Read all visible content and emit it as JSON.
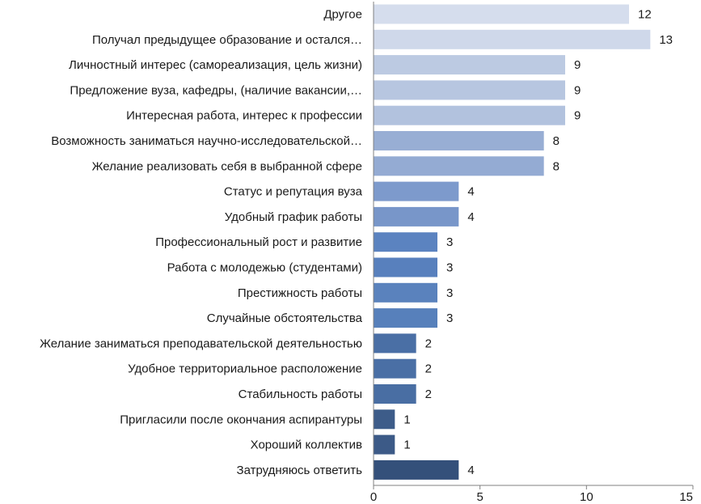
{
  "chart_data": {
    "type": "bar",
    "orientation": "horizontal",
    "categories": [
      "Другое",
      "Получал предыдущее образование и остался…",
      "Личностный интерес (самореализация, цель жизни)",
      "Предложение вуза, кафедры, (наличие вакансии,…",
      "Интересная работа, интерес к профессии",
      "Возможность заниматься научно-исследовательской…",
      "Желание реализовать себя в выбранной сфере",
      "Статус и репутация вуза",
      "Удобный график работы",
      "Профессиональный рост и развитие",
      "Работа с молодежью (студентами)",
      "Престижность работы",
      "Случайные обстоятельства",
      "Желание заниматься преподавательской деятельностью",
      "Удобное территориальное расположение",
      "Стабильность работы",
      "Пригласили после окончания аспирантуры",
      "Хороший коллектив",
      "Затрудняюсь ответить"
    ],
    "values": [
      12,
      13,
      9,
      9,
      9,
      8,
      8,
      4,
      4,
      3,
      3,
      3,
      3,
      2,
      2,
      2,
      1,
      1,
      4
    ],
    "data_labels": [
      "12",
      "13",
      "9",
      "9",
      "9",
      "8",
      "8",
      "4",
      "4",
      "3",
      "3",
      "3",
      "3",
      "2",
      "2",
      "2",
      "1",
      "1",
      "4"
    ],
    "xlim": [
      0,
      15
    ],
    "x_ticks": [
      0,
      5,
      10,
      15
    ],
    "x_tick_labels": [
      "0",
      "5",
      "10",
      "15"
    ],
    "grid": false,
    "legend": "none",
    "bar_colors": [
      "#d5dded",
      "#cfd8ea",
      "#bccae2",
      "#b7c6e0",
      "#b2c2de",
      "#98aed4",
      "#94abd3",
      "#7d9acc",
      "#7896c9",
      "#5b83c0",
      "#5880bd",
      "#5a82bd",
      "#5780bb",
      "#4a6fa5",
      "#4a6fa5",
      "#496ea3",
      "#3d5c89",
      "#3c5a87",
      "#34507a"
    ]
  }
}
